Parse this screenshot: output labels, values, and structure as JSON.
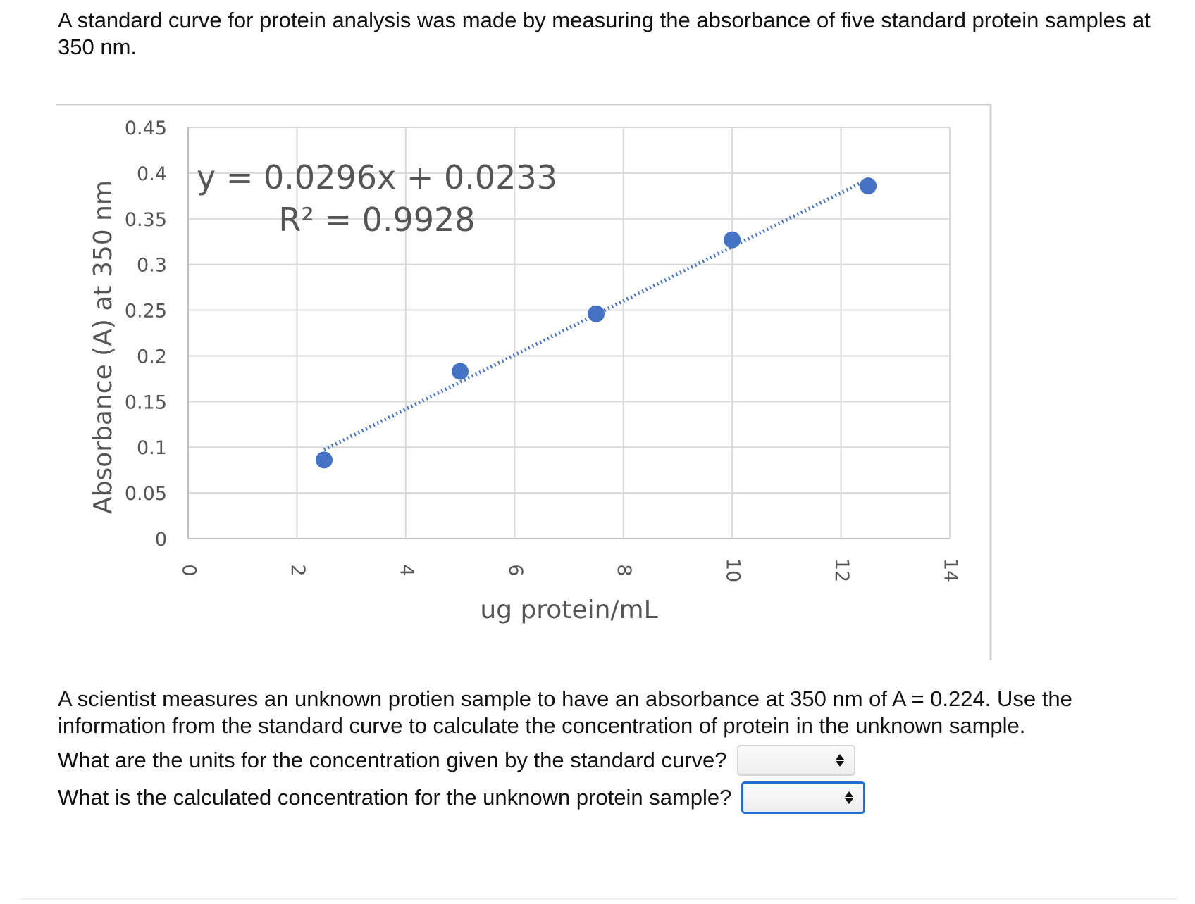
{
  "intro_text": "A standard curve for protein analysis was made by measuring the absorbance of five standard protein samples at 350 nm.",
  "chart_data": {
    "type": "scatter",
    "xlabel": "ug protein/mL",
    "ylabel": "Absorbance (A)  at 350 nm",
    "xlim": [
      0,
      14
    ],
    "ylim": [
      0,
      0.45
    ],
    "x_ticks": [
      0,
      2,
      4,
      6,
      8,
      10,
      12,
      14
    ],
    "x_tick_labels": [
      "0",
      "2",
      "4",
      "6",
      "8",
      "10",
      "12",
      "14"
    ],
    "y_ticks": [
      0,
      0.05,
      0.1,
      0.15,
      0.2,
      0.25,
      0.3,
      0.35,
      0.4,
      0.45
    ],
    "y_tick_labels": [
      "0",
      "0.05",
      "0.1",
      "0.15",
      "0.2",
      "0.25",
      "0.3",
      "0.35",
      "0.4",
      "0.45"
    ],
    "grid": true,
    "series": [
      {
        "color": "#4472c4",
        "x": [
          2.5,
          5,
          7.5,
          10,
          12.5
        ],
        "y": [
          0.086,
          0.183,
          0.246,
          0.327,
          0.386
        ]
      }
    ],
    "trendline": {
      "slope": 0.0296,
      "intercept": 0.0233,
      "x_range": [
        2.5,
        12.5
      ],
      "style": "dotted",
      "color": "#4472c4",
      "equation_label": "y = 0.0296x + 0.0233",
      "r_squared_label": "R² = 0.9928"
    }
  },
  "question_text": "A scientist measures an unknown protien sample to have an absorbance at 350 nm of A = 0.224. Use the information from the standard curve to calculate the concentration of protein in the unknown sample.",
  "questions": [
    {
      "label": "What are the units for the concentration given by the standard curve?",
      "selected": ""
    },
    {
      "label": "What is the calculated concentration for the unknown protein sample?",
      "selected": ""
    }
  ]
}
